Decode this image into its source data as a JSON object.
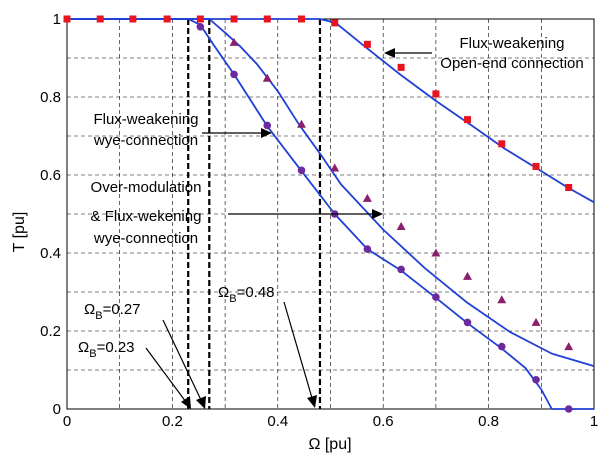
{
  "chart_data": {
    "type": "line",
    "xlabel": "Ω [pu]",
    "ylabel": "T [pu]",
    "xlim": [
      0,
      1
    ],
    "ylim": [
      0,
      1
    ],
    "x_ticks": [
      0,
      0.2,
      0.4,
      0.6,
      0.8,
      1
    ],
    "x_tick_labels": [
      "0",
      "0.2",
      "0.4",
      "0.6",
      "0.8",
      "1"
    ],
    "y_ticks": [
      0,
      0.2,
      0.4,
      0.6,
      0.8,
      1
    ],
    "y_tick_labels": [
      "0",
      "0.2",
      "0.4",
      "0.6",
      "0.8",
      "1"
    ],
    "grid": true,
    "grid_style": "dashed",
    "line_color": "#1f3fd6",
    "series": [
      {
        "marker": "square",
        "marker_color": "#e8141e",
        "line": [
          [
            0,
            1
          ],
          [
            0.48,
            1
          ],
          [
            0.51,
            0.99
          ],
          [
            0.56,
            0.935
          ],
          [
            0.63,
            0.86
          ],
          [
            0.7,
            0.79
          ],
          [
            0.77,
            0.725
          ],
          [
            0.83,
            0.668
          ],
          [
            0.9,
            0.61
          ],
          [
            0.95,
            0.568
          ],
          [
            1,
            0.53
          ]
        ],
        "markers": [
          [
            0,
            1
          ],
          [
            0.063,
            1
          ],
          [
            0.125,
            1
          ],
          [
            0.19,
            1
          ],
          [
            0.253,
            1
          ],
          [
            0.317,
            1
          ],
          [
            0.38,
            1
          ],
          [
            0.445,
            1
          ],
          [
            0.508,
            0.99
          ],
          [
            0.57,
            0.935
          ],
          [
            0.634,
            0.876
          ],
          [
            0.7,
            0.808
          ],
          [
            0.76,
            0.742
          ],
          [
            0.825,
            0.68
          ],
          [
            0.89,
            0.622
          ],
          [
            0.952,
            0.568
          ]
        ]
      },
      {
        "marker": "triangle",
        "marker_color": "#8a1f6b",
        "line": [
          [
            0,
            1
          ],
          [
            0.27,
            1
          ],
          [
            0.3,
            0.965
          ],
          [
            0.33,
            0.928
          ],
          [
            0.36,
            0.885
          ],
          [
            0.4,
            0.815
          ],
          [
            0.44,
            0.73
          ],
          [
            0.48,
            0.655
          ],
          [
            0.52,
            0.576
          ],
          [
            0.6,
            0.46
          ],
          [
            0.68,
            0.36
          ],
          [
            0.76,
            0.272
          ],
          [
            0.84,
            0.198
          ],
          [
            0.92,
            0.142
          ],
          [
            1,
            0.11
          ]
        ],
        "markers": [
          [
            0.317,
            0.94
          ],
          [
            0.38,
            0.848
          ],
          [
            0.445,
            0.73
          ],
          [
            0.508,
            0.618
          ],
          [
            0.57,
            0.54
          ],
          [
            0.634,
            0.468
          ],
          [
            0.7,
            0.4
          ],
          [
            0.76,
            0.34
          ],
          [
            0.825,
            0.28
          ],
          [
            0.89,
            0.222
          ],
          [
            0.952,
            0.16
          ]
        ]
      },
      {
        "marker": "circle",
        "marker_color": "#6b2a9e",
        "line": [
          [
            0,
            1
          ],
          [
            0.23,
            1
          ],
          [
            0.253,
            0.985
          ],
          [
            0.28,
            0.93
          ],
          [
            0.317,
            0.858
          ],
          [
            0.38,
            0.725
          ],
          [
            0.445,
            0.61
          ],
          [
            0.508,
            0.5
          ],
          [
            0.57,
            0.41
          ],
          [
            0.634,
            0.355
          ],
          [
            0.7,
            0.285
          ],
          [
            0.76,
            0.22
          ],
          [
            0.825,
            0.155
          ],
          [
            0.87,
            0.105
          ],
          [
            0.9,
            0.05
          ],
          [
            0.92,
            0
          ],
          [
            1,
            0
          ]
        ],
        "markers": [
          [
            0.253,
            0.98
          ],
          [
            0.317,
            0.858
          ],
          [
            0.38,
            0.727
          ],
          [
            0.445,
            0.612
          ],
          [
            0.508,
            0.5
          ],
          [
            0.57,
            0.41
          ],
          [
            0.634,
            0.358
          ],
          [
            0.7,
            0.287
          ],
          [
            0.76,
            0.222
          ],
          [
            0.825,
            0.16
          ],
          [
            0.89,
            0.075
          ],
          [
            0.952,
            0
          ]
        ]
      }
    ],
    "vlines": [
      0.23,
      0.27,
      0.48
    ],
    "annotations": {
      "open_end": [
        "Flux-weakening",
        "Open-end connection"
      ],
      "wye": [
        "Flux-weakening",
        "wye-connection"
      ],
      "overmod": [
        "Over-modulation",
        "& Flux-wekening",
        "wye-connection"
      ],
      "omega_027": {
        "sym": "Ω",
        "sub": "B",
        "val": "=0.27"
      },
      "omega_023": {
        "sym": "Ω",
        "sub": "B",
        "val": "=0.23"
      },
      "omega_048": {
        "sym": "Ω",
        "sub": "B",
        "val": "=0.48"
      }
    }
  }
}
